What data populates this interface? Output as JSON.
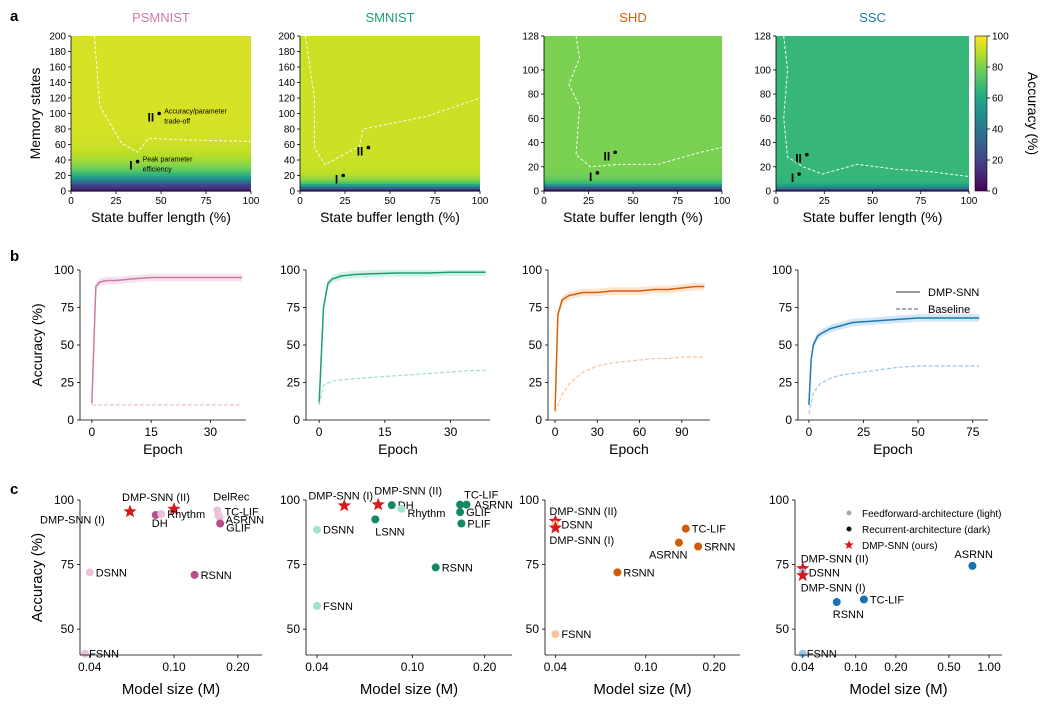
{
  "figure": {
    "panel_labels": [
      "a",
      "b",
      "c"
    ],
    "colors": {
      "PSMNIST": "#cc79a7",
      "SMNIST": "#1b9e77",
      "SHD": "#d95f02",
      "SSC": "#1f78b4"
    }
  },
  "chart_data": [
    {
      "type": "heatmap",
      "panel": "a",
      "title": "PSMNIST",
      "xlabel": "State buffer length (%)",
      "ylabel": "Memory states",
      "xlim": [
        0,
        100
      ],
      "ylim": [
        0,
        200
      ],
      "xticks": [
        "0",
        "25",
        "50",
        "75",
        "100"
      ],
      "yticks": [
        "0",
        "20",
        "40",
        "60",
        "80",
        "100",
        "120",
        "140",
        "160",
        "180",
        "200"
      ],
      "levels": {
        "plateau": 94,
        "cutoff": 10,
        "ramp": 14
      },
      "points": [
        {
          "label": "I",
          "x": 37,
          "y": 38,
          "note": [
            "Peak parameter",
            "efficiency"
          ]
        },
        {
          "label": "II",
          "x": 49,
          "y": 100,
          "note": [
            "Accuracy/parameter",
            "trade-off"
          ]
        }
      ],
      "contour": [
        [
          13,
          200
        ],
        [
          16,
          110
        ],
        [
          28,
          62
        ],
        [
          37,
          50
        ],
        [
          43,
          68
        ],
        [
          62,
          66
        ],
        [
          100,
          64
        ]
      ]
    },
    {
      "type": "heatmap",
      "panel": "a",
      "title": "SMNIST",
      "xlabel": "State buffer length (%)",
      "ylabel": "",
      "xlim": [
        0,
        100
      ],
      "ylim": [
        0,
        200
      ],
      "xticks": [
        "0",
        "25",
        "50",
        "75",
        "100"
      ],
      "yticks": [
        "0",
        "20",
        "40",
        "60",
        "80",
        "100",
        "120",
        "140",
        "160",
        "180",
        "200"
      ],
      "levels": {
        "plateau": 92,
        "cutoff": 4,
        "ramp": 6
      },
      "points": [
        {
          "label": "I",
          "x": 24,
          "y": 20
        },
        {
          "label": "II",
          "x": 38,
          "y": 56
        }
      ],
      "contour": [
        [
          3,
          200
        ],
        [
          8,
          120
        ],
        [
          8,
          56
        ],
        [
          14,
          34
        ],
        [
          33,
          58
        ],
        [
          35,
          80
        ],
        [
          70,
          96
        ],
        [
          100,
          120
        ]
      ]
    },
    {
      "type": "heatmap",
      "panel": "a",
      "title": "SHD",
      "xlabel": "State buffer length (%)",
      "ylabel": "",
      "xlim": [
        0,
        100
      ],
      "ylim": [
        0,
        128
      ],
      "xticks": [
        "0",
        "25",
        "50",
        "75",
        "100"
      ],
      "yticks": [
        "0",
        "20",
        "40",
        "60",
        "80",
        "100",
        "128"
      ],
      "levels": {
        "plateau": 80,
        "cutoff": 3,
        "ramp": 3
      },
      "points": [
        {
          "label": "I",
          "x": 30,
          "y": 15
        },
        {
          "label": "II",
          "x": 40,
          "y": 32
        }
      ],
      "contour": [
        [
          18,
          128
        ],
        [
          20,
          110
        ],
        [
          14,
          88
        ],
        [
          20,
          70
        ],
        [
          18,
          30
        ],
        [
          26,
          20
        ],
        [
          42,
          22
        ],
        [
          64,
          22
        ],
        [
          88,
          32
        ],
        [
          100,
          36
        ]
      ]
    },
    {
      "type": "heatmap",
      "panel": "a",
      "title": "SSC",
      "xlabel": "State buffer length (%)",
      "ylabel": "",
      "xlim": [
        0,
        100
      ],
      "ylim": [
        0,
        128
      ],
      "xticks": [
        "0",
        "25",
        "50",
        "75",
        "100"
      ],
      "yticks": [
        "0",
        "20",
        "40",
        "60",
        "80",
        "100",
        "128"
      ],
      "colorbar": {
        "label": "Accuracy (%)",
        "ticks": [
          "0",
          "20",
          "40",
          "60",
          "80",
          "100"
        ]
      },
      "levels": {
        "plateau": 66,
        "cutoff": 2,
        "ramp": 2
      },
      "points": [
        {
          "label": "I",
          "x": 12,
          "y": 14
        },
        {
          "label": "II",
          "x": 16,
          "y": 30
        }
      ],
      "contour": [
        [
          4,
          128
        ],
        [
          6,
          100
        ],
        [
          4,
          60
        ],
        [
          6,
          28
        ],
        [
          14,
          20
        ],
        [
          24,
          14
        ],
        [
          42,
          22
        ],
        [
          62,
          18
        ],
        [
          80,
          16
        ],
        [
          100,
          12
        ]
      ]
    },
    {
      "type": "line",
      "panel": "b",
      "title": "",
      "xlabel": "Epoch",
      "ylabel": "Accuracy (%)",
      "xlim": [
        -3,
        39
      ],
      "ylim": [
        0,
        100
      ],
      "xticks": [
        "0",
        "15",
        "30"
      ],
      "yticks": [
        "0",
        "25",
        "50",
        "75",
        "100"
      ],
      "series": [
        {
          "name": "DMP-SNN",
          "x": [
            0,
            1,
            2,
            4,
            6,
            10,
            15,
            20,
            25,
            30,
            35,
            38
          ],
          "values": [
            11,
            89,
            92,
            93,
            93,
            94,
            95,
            95,
            95,
            95,
            95,
            95
          ]
        },
        {
          "name": "Baseline",
          "x": [
            0,
            1,
            2,
            4,
            6,
            10,
            15,
            20,
            25,
            30,
            35,
            38
          ],
          "values": [
            10,
            10,
            10,
            10,
            10,
            10,
            10,
            10,
            10,
            10,
            10,
            10
          ]
        }
      ]
    },
    {
      "type": "line",
      "panel": "b",
      "title": "",
      "xlabel": "Epoch",
      "ylabel": "",
      "xlim": [
        -3,
        39
      ],
      "ylim": [
        0,
        100
      ],
      "xticks": [
        "0",
        "15",
        "30"
      ],
      "yticks": [
        "0",
        "25",
        "50",
        "75",
        "100"
      ],
      "series": [
        {
          "name": "DMP-SNN",
          "x": [
            0,
            1,
            2,
            3,
            5,
            8,
            12,
            18,
            25,
            30,
            35,
            38
          ],
          "values": [
            11,
            75,
            91,
            94,
            96,
            97,
            97.5,
            98,
            98,
            98.5,
            98.5,
            98.5
          ]
        },
        {
          "name": "Baseline",
          "x": [
            0,
            1,
            3,
            6,
            10,
            15,
            20,
            25,
            30,
            35,
            38
          ],
          "values": [
            10,
            23,
            26,
            27,
            28,
            29,
            30,
            31,
            32,
            33,
            33
          ]
        }
      ]
    },
    {
      "type": "line",
      "panel": "b",
      "title": "",
      "xlabel": "Epoch",
      "ylabel": "",
      "xlim": [
        -5,
        110
      ],
      "ylim": [
        0,
        100
      ],
      "xticks": [
        "0",
        "30",
        "60",
        "90"
      ],
      "yticks": [
        "0",
        "25",
        "50",
        "75",
        "100"
      ],
      "series": [
        {
          "name": "DMP-SNN",
          "x": [
            0,
            2,
            5,
            10,
            15,
            20,
            30,
            40,
            50,
            60,
            70,
            80,
            90,
            100,
            106
          ],
          "values": [
            6,
            70,
            80,
            83,
            84,
            85,
            85,
            86,
            86,
            86,
            87,
            87,
            88,
            89,
            89
          ]
        },
        {
          "name": "Baseline",
          "x": [
            0,
            5,
            10,
            20,
            30,
            40,
            50,
            60,
            70,
            80,
            90,
            100,
            106
          ],
          "values": [
            5,
            17,
            24,
            32,
            36,
            38,
            39,
            40,
            41,
            41,
            42,
            42,
            42
          ]
        }
      ]
    },
    {
      "type": "line",
      "panel": "b",
      "title": "",
      "xlabel": "Epoch",
      "ylabel": "",
      "xlim": [
        -5,
        82
      ],
      "ylim": [
        0,
        100
      ],
      "xticks": [
        "0",
        "25",
        "50",
        "75"
      ],
      "yticks": [
        "0",
        "25",
        "50",
        "75",
        "100"
      ],
      "legend": {
        "position": "top-right",
        "entries": [
          "DMP-SNN",
          "Baseline"
        ]
      },
      "series": [
        {
          "name": "DMP-SNN",
          "x": [
            0,
            1,
            2,
            4,
            6,
            10,
            15,
            20,
            30,
            40,
            50,
            60,
            70,
            78
          ],
          "values": [
            10,
            40,
            50,
            56,
            58,
            61,
            63,
            65,
            66,
            67,
            68,
            68,
            68,
            68
          ]
        },
        {
          "name": "Baseline",
          "x": [
            0,
            2,
            5,
            10,
            15,
            20,
            30,
            40,
            50,
            60,
            70,
            78
          ],
          "values": [
            4,
            18,
            24,
            28,
            30,
            31,
            33,
            35,
            36,
            36,
            36,
            36
          ]
        }
      ]
    },
    {
      "type": "scatter",
      "panel": "c",
      "title": "",
      "xlabel": "Model size (M)",
      "ylabel": "Accuracy (%)",
      "xscale": "log",
      "xlim": [
        0.036,
        0.26
      ],
      "ylim": [
        40,
        100
      ],
      "xticks": [
        {
          "v": 0.04,
          "l": "0.04"
        },
        {
          "v": 0.1,
          "l": "0.10"
        },
        {
          "v": 0.2,
          "l": "0.20"
        }
      ],
      "yticks": [
        "50",
        "75",
        "100"
      ],
      "points": [
        {
          "name": "DMP-SNN (II)",
          "x": 0.1,
          "y": 96.5,
          "kind": "star"
        },
        {
          "name": "DMP-SNN (I)",
          "x": 0.062,
          "y": 95.5,
          "kind": "star"
        },
        {
          "name": "DH",
          "x": 0.082,
          "y": 94.2,
          "kind": "dark"
        },
        {
          "name": "Rhythm",
          "x": 0.087,
          "y": 94.6,
          "kind": "light"
        },
        {
          "name": "DelRec",
          "x": 0.16,
          "y": 96.0,
          "kind": "light"
        },
        {
          "name": "TC-LIF",
          "x": 0.162,
          "y": 94.0,
          "kind": "light"
        },
        {
          "name": "ASRNN",
          "x": 0.164,
          "y": 93.3,
          "kind": "light"
        },
        {
          "name": "GLIF",
          "x": 0.165,
          "y": 90.9,
          "kind": "dark"
        },
        {
          "name": "DSNN",
          "x": 0.04,
          "y": 72.0,
          "kind": "light"
        },
        {
          "name": "RSNN",
          "x": 0.125,
          "y": 71.0,
          "kind": "dark"
        },
        {
          "name": "FSNN",
          "x": 0.038,
          "y": 40.5,
          "kind": "light"
        }
      ]
    },
    {
      "type": "scatter",
      "panel": "c",
      "title": "",
      "xlabel": "Model size (M)",
      "ylabel": "",
      "xscale": "log",
      "xlim": [
        0.036,
        0.26
      ],
      "ylim": [
        40,
        100
      ],
      "xticks": [
        {
          "v": 0.04,
          "l": "0.04"
        },
        {
          "v": 0.1,
          "l": "0.10"
        },
        {
          "v": 0.2,
          "l": "0.20"
        }
      ],
      "yticks": [
        "50",
        "75",
        "100"
      ],
      "points": [
        {
          "name": "DMP-SNN (I)",
          "x": 0.052,
          "y": 97.8,
          "kind": "star"
        },
        {
          "name": "DMP-SNN (II)",
          "x": 0.072,
          "y": 98.2,
          "kind": "star"
        },
        {
          "name": "DH",
          "x": 0.082,
          "y": 98.0,
          "kind": "dark"
        },
        {
          "name": "Rhythm",
          "x": 0.09,
          "y": 96.6,
          "kind": "light"
        },
        {
          "name": "LSNN",
          "x": 0.07,
          "y": 92.5,
          "kind": "dark"
        },
        {
          "name": "DSNN",
          "x": 0.04,
          "y": 88.5,
          "kind": "light"
        },
        {
          "name": "TC-LIF",
          "x": 0.158,
          "y": 98.2,
          "kind": "dark"
        },
        {
          "name": "ASRNN",
          "x": 0.168,
          "y": 98.2,
          "kind": "dark"
        },
        {
          "name": "GLIF",
          "x": 0.158,
          "y": 95.3,
          "kind": "dark"
        },
        {
          "name": "PLIF",
          "x": 0.16,
          "y": 90.9,
          "kind": "dark"
        },
        {
          "name": "RSNN",
          "x": 0.125,
          "y": 73.9,
          "kind": "dark"
        },
        {
          "name": "FSNN",
          "x": 0.04,
          "y": 59.0,
          "kind": "light"
        }
      ]
    },
    {
      "type": "scatter",
      "panel": "c",
      "title": "",
      "xlabel": "Model size (M)",
      "ylabel": "",
      "xscale": "log",
      "xlim": [
        0.036,
        0.26
      ],
      "ylim": [
        40,
        100
      ],
      "xticks": [
        {
          "v": 0.04,
          "l": "0.04"
        },
        {
          "v": 0.1,
          "l": "0.10"
        },
        {
          "v": 0.2,
          "l": "0.20"
        }
      ],
      "yticks": [
        "50",
        "75",
        "100"
      ],
      "points": [
        {
          "name": "DMP-SNN (II)",
          "x": 0.04,
          "y": 91.8,
          "kind": "star"
        },
        {
          "name": "DSNN",
          "x": 0.04,
          "y": 90.5,
          "kind": "light"
        },
        {
          "name": "DMP-SNN (I)",
          "x": 0.04,
          "y": 89.2,
          "kind": "star"
        },
        {
          "name": "TC-LIF",
          "x": 0.15,
          "y": 88.9,
          "kind": "dark"
        },
        {
          "name": "ASRNN",
          "x": 0.14,
          "y": 83.5,
          "kind": "dark"
        },
        {
          "name": "SRNN",
          "x": 0.17,
          "y": 82.0,
          "kind": "dark"
        },
        {
          "name": "RSNN",
          "x": 0.075,
          "y": 72.0,
          "kind": "dark"
        },
        {
          "name": "FSNN",
          "x": 0.04,
          "y": 48.1,
          "kind": "light"
        }
      ]
    },
    {
      "type": "scatter",
      "panel": "c",
      "title": "",
      "xlabel": "Model size (M)",
      "ylabel": "",
      "xscale": "log",
      "xlim": [
        0.035,
        1.25
      ],
      "ylim": [
        40,
        100
      ],
      "xticks": [
        {
          "v": 0.04,
          "l": "0.04"
        },
        {
          "v": 0.1,
          "l": "0.10"
        },
        {
          "v": 0.2,
          "l": "0.20"
        },
        {
          "v": 0.5,
          "l": "0.50"
        },
        {
          "v": 1.0,
          "l": "1.00"
        }
      ],
      "yticks": [
        "50",
        "75",
        "100"
      ],
      "legend": {
        "position": "top-right",
        "entries": [
          {
            "kind": "light",
            "label": "Feedforward-architecture (light)"
          },
          {
            "kind": "dark",
            "label": "Recurrent-architecture (dark)"
          },
          {
            "kind": "star",
            "label": "DMP-SNN (ours)"
          }
        ]
      },
      "points": [
        {
          "name": "DMP-SNN (II)",
          "x": 0.04,
          "y": 73.5,
          "kind": "star"
        },
        {
          "name": "DSNN",
          "x": 0.04,
          "y": 72.0,
          "kind": "light"
        },
        {
          "name": "DMP-SNN (I)",
          "x": 0.04,
          "y": 70.8,
          "kind": "star"
        },
        {
          "name": "ASRNN",
          "x": 0.75,
          "y": 74.5,
          "kind": "dark"
        },
        {
          "name": "TC-LIF",
          "x": 0.115,
          "y": 61.5,
          "kind": "dark"
        },
        {
          "name": "RSNN",
          "x": 0.072,
          "y": 60.5,
          "kind": "dark"
        },
        {
          "name": "FSNN",
          "x": 0.04,
          "y": 40.5,
          "kind": "light"
        }
      ]
    }
  ]
}
